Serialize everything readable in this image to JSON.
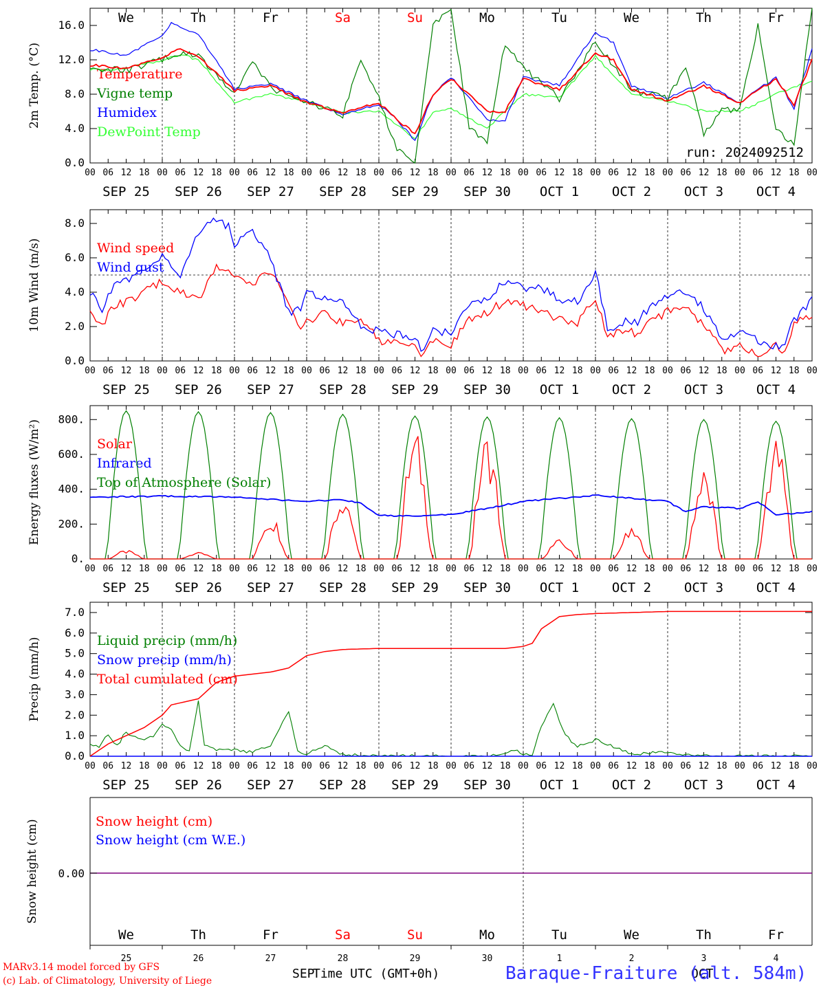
{
  "footer": {
    "credit1": "MARv3.14 model forced by GFS",
    "credit2": "(c) Lab. of Climatology, University of Liege",
    "xlabel": "Time UTC (GMT+0h)",
    "location": "Baraque-Fraiture (alt. 584m)",
    "month_left": "SEP",
    "month_right": "OCT"
  },
  "colors": {
    "red": "#ff0000",
    "green": "#007f00",
    "blue": "#0000ff",
    "lightgreen": "#33ff33",
    "purple": "#7f007f",
    "weekend": "#ff0000"
  },
  "days": {
    "weekday_names": [
      "We",
      "Th",
      "Fr",
      "Sa",
      "Su",
      "Mo",
      "Tu",
      "We",
      "Th",
      "Fr"
    ],
    "weekend_flags": [
      false,
      false,
      false,
      true,
      true,
      false,
      false,
      false,
      false,
      false
    ],
    "date_labels": [
      "SEP 25",
      "SEP 26",
      "SEP 27",
      "SEP 28",
      "SEP 29",
      "SEP 30",
      "OCT  1",
      "OCT  2",
      "OCT  3",
      "OCT  4"
    ],
    "day_numbers": [
      "25",
      "26",
      "27",
      "28",
      "29",
      "30",
      "1",
      "2",
      "3",
      "4"
    ],
    "hour_ticks": [
      "00",
      "06",
      "12",
      "18"
    ]
  },
  "chart_data": [
    {
      "type": "line",
      "ylabel": "2m Temp. (°C)",
      "ylim": [
        0,
        18
      ],
      "yticks": [
        "0.0",
        "4.0",
        "8.0",
        "12.0",
        "16.0"
      ],
      "run_label": "run: 2024092512",
      "x_unit": "hours since Sep 25 00 UTC",
      "series": [
        {
          "name": "Temperature",
          "color": "red",
          "x": [
            0,
            12,
            24,
            30,
            36,
            48,
            60,
            72,
            84,
            96,
            102,
            108,
            114,
            120,
            132,
            138,
            144,
            156,
            168,
            174,
            180,
            192,
            204,
            216,
            228,
            234,
            240
          ],
          "y": [
            11.4,
            11,
            12.2,
            13.3,
            12.4,
            8.4,
            9,
            7,
            5.8,
            7,
            5,
            3.4,
            8,
            9.8,
            6,
            6,
            9.8,
            8.5,
            12.8,
            12,
            8.6,
            7.2,
            9,
            7,
            9.8,
            6.8,
            12
          ]
        },
        {
          "name": "Vigne temp",
          "color": "green",
          "x": [
            0,
            12,
            24,
            30,
            36,
            48,
            54,
            60,
            72,
            84,
            90,
            96,
            102,
            108,
            111,
            114,
            120,
            126,
            132,
            138,
            144,
            156,
            168,
            180,
            192,
            198,
            204,
            210,
            216,
            222,
            228,
            234,
            240
          ],
          "y": [
            11,
            10.8,
            12,
            12.8,
            12.4,
            8,
            12,
            8.8,
            7,
            5.6,
            12.2,
            7.5,
            1.5,
            0,
            8,
            16,
            18,
            4,
            2.5,
            14,
            11,
            7.5,
            14,
            8.5,
            7.5,
            11,
            3.5,
            6,
            6.5,
            16,
            4,
            2.2,
            18
          ]
        },
        {
          "name": "Humidex",
          "color": "blue",
          "x": [
            0,
            12,
            24,
            27,
            36,
            48,
            60,
            72,
            84,
            96,
            102,
            108,
            114,
            120,
            132,
            138,
            144,
            156,
            168,
            174,
            180,
            192,
            204,
            216,
            228,
            234,
            240
          ],
          "y": [
            13.2,
            12.5,
            14.8,
            16.2,
            15,
            8.6,
            9.2,
            7.2,
            5.6,
            6.8,
            5,
            2.6,
            8,
            10,
            5,
            5,
            10,
            9,
            15.2,
            14,
            9,
            7.5,
            9.4,
            7,
            10,
            6.4,
            13.2
          ]
        },
        {
          "name": "DewPoint Temp",
          "color": "lightgreen",
          "x": [
            0,
            12,
            24,
            30,
            36,
            48,
            60,
            72,
            84,
            96,
            108,
            114,
            120,
            132,
            144,
            156,
            168,
            180,
            192,
            204,
            216,
            228,
            240
          ],
          "y": [
            10.8,
            11,
            12,
            12.6,
            12,
            7,
            8,
            7,
            5.8,
            6,
            2.8,
            6,
            6.4,
            4,
            8,
            7.6,
            12.4,
            8,
            7.2,
            6,
            6,
            8,
            9.6
          ]
        }
      ]
    },
    {
      "type": "line",
      "ylabel": "10m Wind (m/s)",
      "ylim": [
        0,
        8.8
      ],
      "yticks": [
        "0.0",
        "2.0",
        "4.0",
        "6.0",
        "8.0"
      ],
      "reference_line": 5,
      "series": [
        {
          "name": "Wind speed",
          "color": "red",
          "x": [
            0,
            4,
            8,
            14,
            20,
            24,
            30,
            36,
            42,
            48,
            54,
            60,
            66,
            70,
            72,
            78,
            84,
            90,
            96,
            102,
            108,
            110,
            114,
            120,
            126,
            132,
            138,
            144,
            150,
            156,
            162,
            168,
            172,
            174,
            178,
            182,
            186,
            192,
            198,
            204,
            210,
            216,
            222,
            228,
            231,
            234,
            240
          ],
          "y": [
            2.9,
            2.1,
            3.2,
            3.6,
            4.2,
            4.6,
            4,
            3.5,
            5.5,
            5,
            4.5,
            5.3,
            3.4,
            1.8,
            2.2,
            2.8,
            2.2,
            2.5,
            1.2,
            1,
            0.9,
            0.2,
            1.2,
            0.9,
            2.4,
            2.8,
            3.5,
            3.2,
            2.8,
            2.5,
            2.2,
            3.6,
            1.4,
            1.5,
            1.8,
            1.6,
            2.2,
            2.9,
            3,
            2.2,
            0.6,
            1,
            0.3,
            1,
            0.5,
            2.2,
            2.5
          ]
        },
        {
          "name": "Wind gust",
          "color": "blue",
          "x": [
            0,
            4,
            8,
            14,
            20,
            24,
            30,
            36,
            42,
            46,
            48,
            54,
            60,
            66,
            70,
            72,
            78,
            84,
            90,
            96,
            102,
            108,
            110,
            114,
            120,
            126,
            132,
            138,
            144,
            150,
            156,
            162,
            168,
            172,
            174,
            178,
            182,
            186,
            192,
            198,
            204,
            210,
            216,
            222,
            228,
            231,
            234,
            240
          ],
          "y": [
            4,
            3,
            4.5,
            4.8,
            5.5,
            6,
            5,
            7.5,
            8.2,
            7.8,
            6.8,
            7.6,
            5.9,
            2.8,
            3,
            3.9,
            3.6,
            3.4,
            2,
            1.7,
            1.5,
            1.4,
            0.6,
            1.8,
            1.6,
            3.2,
            3.7,
            4.6,
            4.3,
            4.2,
            3.6,
            3.4,
            5.2,
            2,
            1.8,
            2.4,
            2.2,
            3.2,
            3.7,
            4.1,
            3.1,
            1.4,
            1.6,
            1.2,
            0.8,
            1.2,
            2.4,
            3.5
          ]
        }
      ]
    },
    {
      "type": "line",
      "ylabel": "Energy fluxes (W/m²)",
      "ylim": [
        0,
        880
      ],
      "yticks": [
        "0.",
        "200.",
        "400.",
        "600.",
        "800."
      ],
      "series": [
        {
          "name": "Solar",
          "color": "red",
          "peak_x": [
            12,
            36,
            60,
            84,
            108,
            132,
            156,
            180,
            204,
            228
          ],
          "peak_y": [
            40,
            30,
            210,
            330,
            600,
            590,
            90,
            140,
            420,
            580
          ]
        },
        {
          "name": "Infrared",
          "color": "blue",
          "x": [
            0,
            24,
            48,
            72,
            84,
            90,
            96,
            108,
            120,
            132,
            144,
            168,
            192,
            198,
            204,
            216,
            222,
            228,
            240
          ],
          "y": [
            355,
            360,
            355,
            330,
            340,
            320,
            250,
            245,
            255,
            290,
            330,
            365,
            330,
            270,
            300,
            290,
            330,
            255,
            270
          ]
        },
        {
          "name": "Top of Atmosphere (Solar)",
          "color": "green",
          "peak_x": [
            12,
            36,
            60,
            84,
            108,
            132,
            156,
            180,
            204,
            228
          ],
          "peak_y": [
            850,
            845,
            840,
            830,
            820,
            815,
            810,
            805,
            800,
            790
          ]
        }
      ]
    },
    {
      "type": "line",
      "ylabel": "Precip (mm/h)",
      "ylim": [
        0,
        7.5
      ],
      "yticks": [
        "0.0",
        "1.0",
        "2.0",
        "3.0",
        "4.0",
        "5.0",
        "6.0",
        "7.0"
      ],
      "series": [
        {
          "name": "Liquid precip (mm/h)",
          "color": "green",
          "x": [
            0,
            3,
            6,
            9,
            12,
            15,
            18,
            21,
            24,
            27,
            30,
            33,
            36,
            38,
            42,
            48,
            54,
            60,
            66,
            69,
            72,
            78,
            84,
            90,
            96,
            102,
            108,
            120,
            132,
            142,
            144,
            147,
            150,
            154,
            158,
            162,
            168,
            180,
            192,
            204,
            216,
            240
          ],
          "y": [
            0.6,
            0.5,
            1.1,
            0.5,
            1.2,
            0.9,
            0.8,
            1,
            1.6,
            1.3,
            0.5,
            0.3,
            2.7,
            0.5,
            0.3,
            0.3,
            0.2,
            0.5,
            2.2,
            0.3,
            0.1,
            0.5,
            0.1,
            0.05,
            0,
            0.05,
            0,
            0,
            0,
            0.3,
            0.1,
            0,
            1.5,
            2.5,
            1,
            0.5,
            0.8,
            0.1,
            0.2,
            0,
            0,
            0
          ]
        },
        {
          "name": "Snow precip (mm/h)",
          "color": "blue",
          "x": [
            0,
            240
          ],
          "y": [
            0,
            0
          ]
        },
        {
          "name": "Total cumulated (cm)",
          "color": "red",
          "x": [
            0,
            6,
            12,
            18,
            24,
            27,
            30,
            36,
            42,
            48,
            54,
            60,
            66,
            72,
            78,
            84,
            96,
            108,
            120,
            132,
            138,
            144,
            147,
            150,
            156,
            162,
            168,
            180,
            192,
            216,
            240
          ],
          "y": [
            0,
            0.6,
            1,
            1.4,
            2,
            2.5,
            2.6,
            2.8,
            3.6,
            3.9,
            4,
            4.1,
            4.3,
            4.9,
            5.1,
            5.2,
            5.25,
            5.25,
            5.25,
            5.25,
            5.25,
            5.35,
            5.5,
            6.2,
            6.8,
            6.9,
            6.95,
            7,
            7.05,
            7.05,
            7.05
          ]
        }
      ]
    },
    {
      "type": "line",
      "ylabel": "Snow height (cm)",
      "yticks": [
        "0.00"
      ],
      "series": [
        {
          "name": "Snow height (cm)",
          "color": "red",
          "x": [
            0,
            240
          ],
          "y": [
            0,
            0
          ]
        },
        {
          "name": "Snow height (cm W.E.)",
          "color": "blue",
          "x": [
            0,
            240
          ],
          "y": [
            0,
            0
          ]
        }
      ]
    }
  ]
}
